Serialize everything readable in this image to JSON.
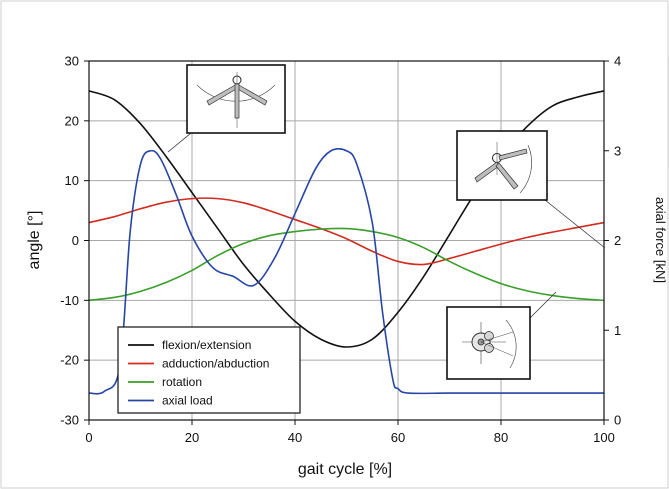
{
  "chart_data": {
    "type": "line",
    "xlabel": "gait cycle [%]",
    "ylabel": "angle [°]",
    "ylabel_right": "axial force [kN]",
    "xlim": [
      0,
      100
    ],
    "ylim": [
      -30,
      30
    ],
    "ylim_right": [
      0,
      4
    ],
    "x_ticks": [
      0,
      20,
      40,
      60,
      80,
      100
    ],
    "y_ticks": [
      -30,
      -20,
      -10,
      0,
      10,
      20,
      30
    ],
    "y_ticks_right": [
      0,
      1,
      2,
      3,
      4
    ],
    "grid": true,
    "legend_position": "bottom-left",
    "series": [
      {
        "name": "flexion/extension",
        "axis": "left",
        "color": "#111111",
        "x": [
          0,
          5,
          10,
          15,
          20,
          25,
          30,
          35,
          40,
          45,
          50,
          55,
          60,
          65,
          70,
          75,
          80,
          85,
          90,
          95,
          100
        ],
        "y": [
          25,
          23.5,
          19.5,
          14,
          8,
          2,
          -4,
          -9,
          -13.5,
          -16.5,
          -17.8,
          -16.5,
          -12,
          -6,
          1,
          8,
          14,
          19,
          22.5,
          24,
          25
        ]
      },
      {
        "name": "adduction/abduction",
        "axis": "left",
        "color": "#d22b1f",
        "x": [
          0,
          5,
          10,
          15,
          20,
          25,
          30,
          35,
          40,
          45,
          50,
          55,
          60,
          65,
          70,
          75,
          80,
          85,
          90,
          95,
          100
        ],
        "y": [
          3,
          4,
          5.3,
          6.4,
          7,
          7,
          6.3,
          5,
          3.5,
          2,
          0.3,
          -1.8,
          -3.5,
          -4,
          -3,
          -1.8,
          -0.6,
          0.5,
          1.4,
          2.2,
          3
        ]
      },
      {
        "name": "rotation",
        "axis": "left",
        "color": "#3a9e2a",
        "x": [
          0,
          5,
          10,
          15,
          20,
          25,
          30,
          35,
          40,
          45,
          50,
          55,
          60,
          65,
          70,
          75,
          80,
          85,
          90,
          95,
          100
        ],
        "y": [
          -10,
          -9.5,
          -8.5,
          -7,
          -5,
          -2.5,
          -0.5,
          0.8,
          1.5,
          1.9,
          2,
          1.5,
          0.5,
          -1.2,
          -3.5,
          -5.5,
          -7.2,
          -8.4,
          -9.2,
          -9.7,
          -10
        ]
      },
      {
        "name": "axial load",
        "axis": "right",
        "color": "#2646a6",
        "x": [
          0,
          3,
          6,
          8,
          10,
          12,
          14,
          17,
          20,
          24,
          28,
          32,
          36,
          40,
          44,
          47,
          50,
          52,
          55,
          57,
          59,
          60,
          62,
          70,
          80,
          90,
          100
        ],
        "y": [
          0.3,
          0.32,
          0.6,
          2.1,
          2.85,
          3.0,
          2.9,
          2.5,
          2.05,
          1.7,
          1.6,
          1.5,
          1.8,
          2.3,
          2.8,
          3.0,
          3.0,
          2.85,
          2.2,
          1.2,
          0.45,
          0.35,
          0.3,
          0.3,
          0.3,
          0.3,
          0.3
        ]
      }
    ],
    "legend": [
      {
        "label": "flexion/extension",
        "color": "#111111"
      },
      {
        "label": "adduction/abduction",
        "color": "#d22b1f"
      },
      {
        "label": " rotation",
        "color": "#3a9e2a"
      },
      {
        "label": "axial load",
        "color": "#2646a6"
      }
    ]
  }
}
